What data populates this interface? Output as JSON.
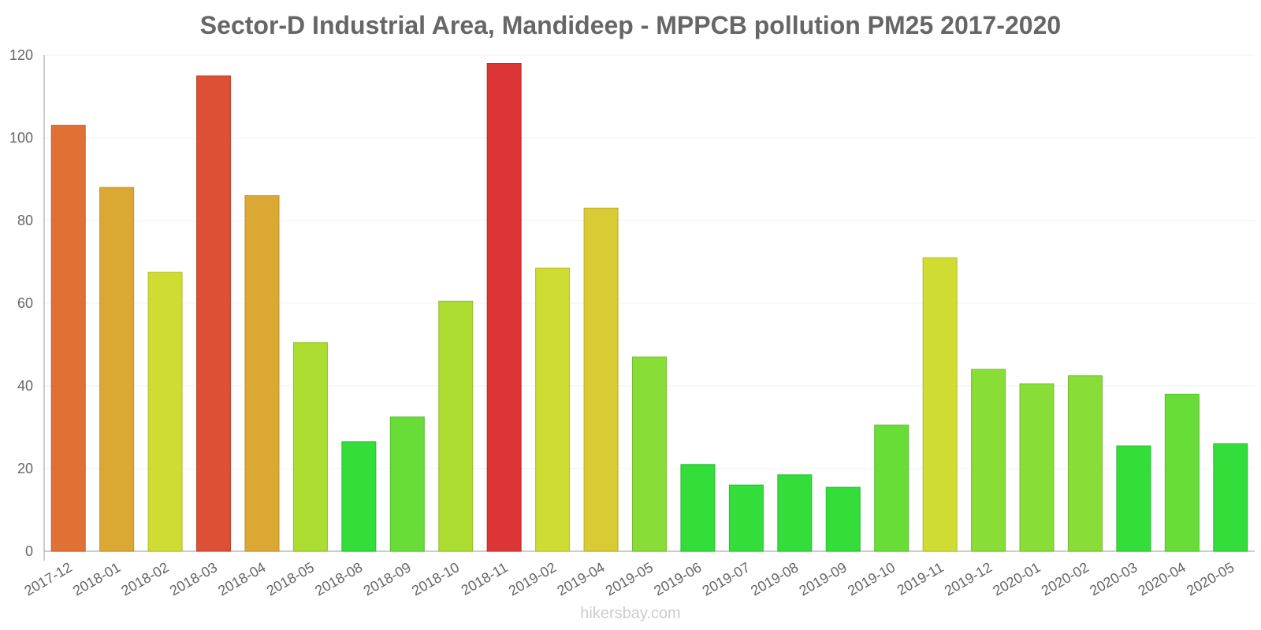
{
  "chart_data": {
    "type": "bar",
    "title": "Sector-D Industrial Area, Mandideep - MPPCB pollution PM25 2017-2020",
    "xlabel": "",
    "ylabel": "",
    "ylim": [
      0,
      120
    ],
    "yticks": [
      0,
      20,
      40,
      60,
      80,
      100,
      120
    ],
    "grid": true,
    "categories": [
      "2017-12",
      "2018-01",
      "2018-02",
      "2018-03",
      "2018-04",
      "2018-05",
      "2018-08",
      "2018-09",
      "2018-10",
      "2018-11",
      "2019-02",
      "2019-04",
      "2019-05",
      "2019-06",
      "2019-07",
      "2019-08",
      "2019-09",
      "2019-10",
      "2019-11",
      "2019-12",
      "2020-01",
      "2020-02",
      "2020-03",
      "2020-04",
      "2020-05"
    ],
    "values": [
      103,
      88,
      67.5,
      115,
      86,
      50.5,
      26.5,
      32.5,
      60.5,
      118,
      68.5,
      83,
      47,
      21,
      16,
      18.5,
      15.5,
      30.5,
      71,
      44,
      40.5,
      42.5,
      25.5,
      38,
      26
    ],
    "colors": [
      "#df7135",
      "#dba834",
      "#cfdc32",
      "#dd5035",
      "#dba834",
      "#addc32",
      "#33dd3a",
      "#68dd38",
      "#addc32",
      "#dd3535",
      "#cfdc32",
      "#d9cb33",
      "#89dd37",
      "#33dd3a",
      "#33dd3a",
      "#33dd3a",
      "#33dd3a",
      "#68dd38",
      "#cfdc32",
      "#89dd37",
      "#89dd37",
      "#89dd37",
      "#33dd3a",
      "#68dd38",
      "#33dd3a"
    ]
  },
  "watermark": "hikersbay.com"
}
